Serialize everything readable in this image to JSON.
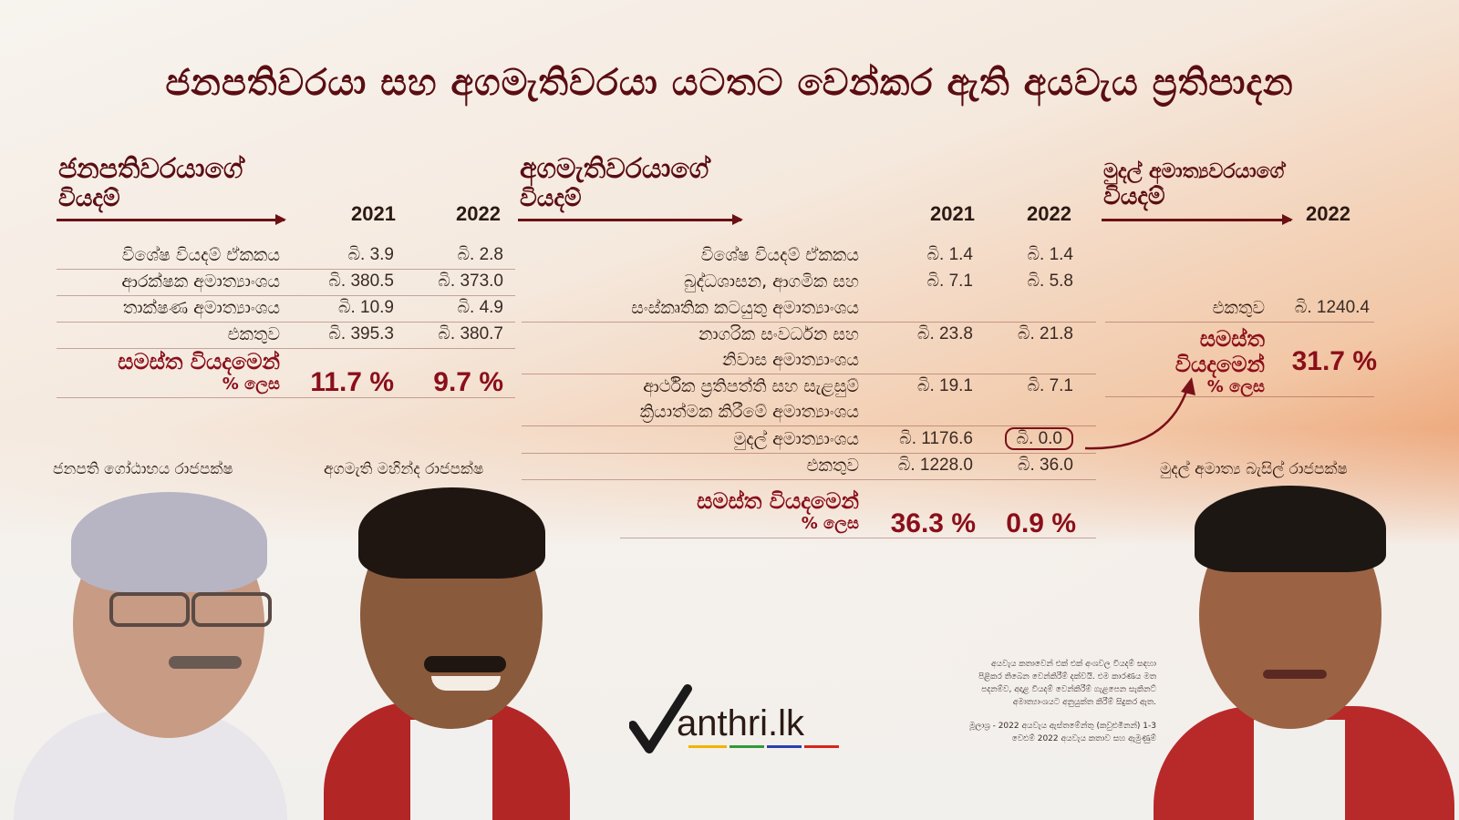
{
  "title": "ජනපතිවරයා සහ අගමැතිවරයා යටතට වෙන්කර ඇති අයවැය ප්‍රතිපාදන",
  "president": {
    "heading1": "ජනපතිවරයාගේ",
    "heading2": "වියදම්",
    "year1": "2021",
    "year2": "2022",
    "rows": [
      {
        "label": "විශේෂ වියදම් ඒකකය",
        "v2021": "බි. 3.9",
        "v2022": "බි. 2.8"
      },
      {
        "label": "ආරක්ෂක අමාත්‍යාංශය",
        "v2021": "බි. 380.5",
        "v2022": "බි. 373.0"
      },
      {
        "label": "තාක්ෂණ අමාත්‍යාංශය",
        "v2021": "බි. 10.9",
        "v2022": "බි. 4.9"
      },
      {
        "label": "එකතුව",
        "v2021": "බි. 395.3",
        "v2022": "බි. 380.7"
      }
    ],
    "pct_label1": "සමස්ත වියදමෙන්",
    "pct_label2": "% ලෙස",
    "pct2021": "11.7 %",
    "pct2022": "9.7 %",
    "caption": "ජනපති ගෝඨාභය රාජපක්ෂ"
  },
  "pm": {
    "heading1": "අගමැතිවරයාගේ",
    "heading2": "වියදම්",
    "year1": "2021",
    "year2": "2022",
    "rows": [
      {
        "label": "විශේෂ වියදම් ඒකකය",
        "v2021": "බි. 1.4",
        "v2022": "බි. 1.4"
      },
      {
        "label": "බුද්ධශාසන, ආගමික සහ",
        "v2021": "බි. 7.1",
        "v2022": "බි. 5.8"
      },
      {
        "label": "සංස්කෘතික කටයුතු අමාත්‍යාංශය",
        "v2021": "",
        "v2022": ""
      },
      {
        "label": "නාගරික සංවර්ධන සහ",
        "v2021": "බි. 23.8",
        "v2022": "බි. 21.8"
      },
      {
        "label": "නිවාස අමාත්‍යාංශය",
        "v2021": "",
        "v2022": ""
      },
      {
        "label": "ආර්ථික ප්‍රතිපත්ති සහ සැළසුම්",
        "v2021": "බි. 19.1",
        "v2022": "බි. 7.1"
      },
      {
        "label": "ක්‍රියාත්මක කිරීමේ අමාත්‍යාංශය",
        "v2021": "",
        "v2022": ""
      },
      {
        "label": "මුදල් අමාත්‍යාංශය",
        "v2021": "බි. 1176.6",
        "v2022": "බි. 0.0"
      },
      {
        "label": "එකතුව",
        "v2021": "බි. 1228.0",
        "v2022": "බි. 36.0"
      }
    ],
    "pct_label1": "සමස්ත වියදමෙන්",
    "pct_label2": "% ලෙස",
    "pct2021": "36.3 %",
    "pct2022": "0.9 %",
    "caption": "අගමැති මහින්ද රාජපක්ෂ"
  },
  "finance": {
    "heading1": "මුදල් අමාත්‍යවරයාගේ",
    "heading2": "වියදම්",
    "year": "2022",
    "total_label": "එකතුව",
    "total_value": "බි. 1240.4",
    "pct_label1": "සමස්ත",
    "pct_label2": "වියදමෙන්",
    "pct_label3": "% ලෙස",
    "pct": "31.7 %",
    "caption": "මුදල් අමාත්‍ය බැසිල් රාජපක්ෂ"
  },
  "note": {
    "line1": "අයවැය කතාවෙන් එක් එක් අංශවල වියදම් සඳහා",
    "line2": "පිළිකර තිබෙන වෙන්කිරීම් දක්වයි. එම කාරණය මත",
    "line3": "පදනම්ව, අදාළ වියදම් වෙන්කිරීම් ගැළපෙන සැකිනට්",
    "line4": "අමාත්‍යාංශයට අනුයුක්ත කිරීම් සිදුකර ඇත.",
    "source1": "මූලාශ්‍ර - 2022 අයවැය ඇස්තමේන්තු (කවුළුමිනන්) 1-3",
    "source2": "වෙළුම් 2022 අයවැය කතාව සහ ඇමුණුම්"
  },
  "logo": {
    "text": "anthri.lk"
  },
  "colors": {
    "accent": "#8a0f1a",
    "dark_red": "#5a0d12"
  }
}
